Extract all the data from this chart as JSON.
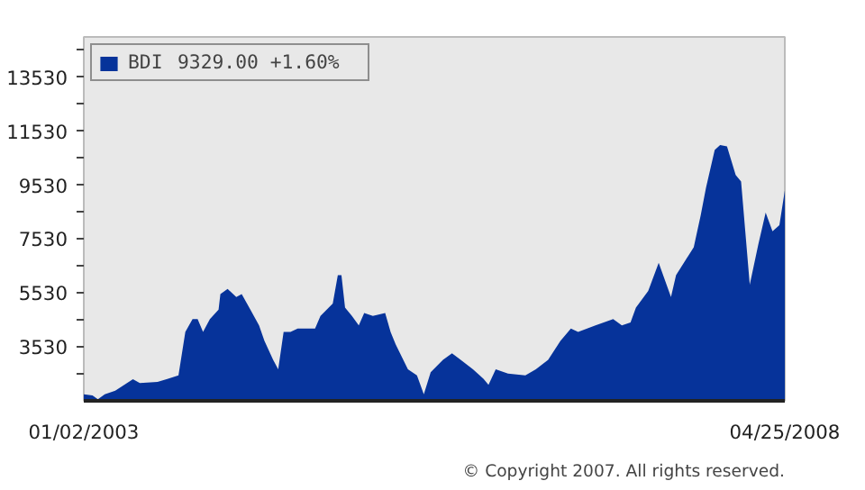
{
  "chart_data": {
    "type": "area",
    "x": [
      "2003-01-02",
      "2003-01-26",
      "2003-02-10",
      "2003-03-01",
      "2003-03-30",
      "2003-05-18",
      "2003-06-06",
      "2003-07-25",
      "2003-08-23",
      "2003-09-21",
      "2003-10-10",
      "2003-10-30",
      "2003-11-13",
      "2003-11-28",
      "2003-12-17",
      "2004-01-10",
      "2004-01-15",
      "2004-02-04",
      "2004-02-28",
      "2004-03-14",
      "2004-04-07",
      "2004-05-01",
      "2004-05-16",
      "2004-06-09",
      "2004-06-23",
      "2004-07-08",
      "2004-07-27",
      "2004-08-16",
      "2004-10-03",
      "2004-10-18",
      "2004-11-21",
      "2004-12-05",
      "2004-12-15",
      "2004-12-25",
      "2005-01-13",
      "2005-02-01",
      "2005-02-16",
      "2005-03-12",
      "2005-04-15",
      "2005-04-30",
      "2005-05-14",
      "2005-06-17",
      "2005-07-12",
      "2005-07-31",
      "2005-08-19",
      "2005-09-22",
      "2005-10-17",
      "2005-11-10",
      "2005-12-14",
      "2006-01-12",
      "2006-01-26",
      "2006-02-15",
      "2006-03-21",
      "2006-05-08",
      "2006-06-06",
      "2006-07-10",
      "2006-08-13",
      "2006-09-11",
      "2006-10-01",
      "2006-11-18",
      "2007-01-06",
      "2007-01-30",
      "2007-02-23",
      "2007-03-10",
      "2007-04-13",
      "2007-05-12",
      "2007-06-15",
      "2007-06-29",
      "2007-08-17",
      "2007-09-05",
      "2007-09-20",
      "2007-10-14",
      "2007-10-29",
      "2007-11-17",
      "2007-12-11",
      "2007-12-26",
      "2008-01-19",
      "2008-02-12",
      "2008-03-03",
      "2008-03-22",
      "2008-04-10",
      "2008-04-25"
    ],
    "series": [
      {
        "name": "BDI",
        "color": "#06339a",
        "values": [
          1770,
          1730,
          1590,
          1770,
          1910,
          2330,
          2190,
          2230,
          2350,
          2470,
          4090,
          4560,
          4560,
          4090,
          4560,
          4910,
          5490,
          5680,
          5380,
          5490,
          4910,
          4330,
          3750,
          3050,
          2700,
          4090,
          4090,
          4210,
          4210,
          4680,
          5140,
          6190,
          6190,
          4990,
          4680,
          4330,
          4790,
          4680,
          4790,
          4090,
          3630,
          2700,
          2470,
          1770,
          2590,
          3050,
          3290,
          3050,
          2700,
          2350,
          2120,
          2700,
          2540,
          2470,
          2700,
          3050,
          3750,
          4210,
          4090,
          4330,
          4560,
          4330,
          4440,
          4990,
          5610,
          6650,
          5380,
          6190,
          7230,
          8400,
          9440,
          10840,
          11020,
          10970,
          9910,
          9670,
          5840,
          7350,
          8510,
          7820,
          8050,
          9329
        ]
      }
    ],
    "xlim": [
      "2003-01-02",
      "2008-04-25"
    ],
    "xticks": [
      {
        "value": "2003-01-02",
        "label": "01/02/2003"
      },
      {
        "value": "2008-04-25",
        "label": "04/25/2008"
      }
    ],
    "ylim": [
      1530,
      15030
    ],
    "yticks": [
      {
        "value": 2530,
        "label": null
      },
      3530,
      {
        "value": 4530,
        "label": null
      },
      5530,
      {
        "value": 6530,
        "label": null
      },
      7530,
      {
        "value": 8530,
        "label": null
      },
      9530,
      {
        "value": 10530,
        "label": null
      },
      11530,
      {
        "value": 12530,
        "label": null
      },
      13530,
      {
        "value": 14530,
        "label": null
      }
    ],
    "legend": "top left",
    "annotations": [
      "9329.00  +1.60%",
      "© Copyright 2007. All rights reserved."
    ]
  }
}
